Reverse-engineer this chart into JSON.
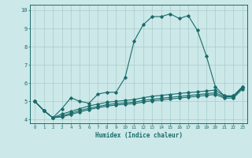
{
  "xlabel": "Humidex (Indice chaleur)",
  "background_color": "#cce8e8",
  "grid_color": "#aacccc",
  "line_color": "#1a6b6b",
  "xlim": [
    -0.5,
    23.5
  ],
  "ylim": [
    3.8,
    10.3
  ],
  "xticks": [
    0,
    1,
    2,
    3,
    4,
    5,
    6,
    7,
    8,
    9,
    10,
    11,
    12,
    13,
    14,
    15,
    16,
    17,
    18,
    19,
    20,
    21,
    22,
    23
  ],
  "yticks": [
    4,
    5,
    6,
    7,
    8,
    9,
    10
  ],
  "line1_x": [
    0,
    1,
    2,
    3,
    4,
    5,
    6,
    7,
    8,
    9,
    10,
    11,
    12,
    13,
    14,
    15,
    16,
    17,
    18,
    19,
    20,
    21,
    22,
    23
  ],
  "line1_y": [
    5.0,
    4.5,
    4.1,
    4.6,
    5.2,
    5.0,
    4.9,
    5.4,
    5.5,
    5.5,
    6.3,
    8.3,
    9.2,
    9.65,
    9.65,
    9.8,
    9.55,
    9.7,
    8.9,
    7.5,
    5.8,
    5.3,
    5.3,
    5.8
  ],
  "line2_x": [
    0,
    1,
    2,
    3,
    4,
    5,
    6,
    7,
    8,
    9,
    10,
    11,
    12,
    13,
    14,
    15,
    16,
    17,
    18,
    19,
    20,
    21,
    22,
    23
  ],
  "line2_y": [
    5.0,
    4.5,
    4.1,
    4.3,
    4.45,
    4.6,
    4.75,
    4.85,
    4.95,
    5.0,
    5.05,
    5.1,
    5.2,
    5.28,
    5.33,
    5.38,
    5.43,
    5.48,
    5.52,
    5.57,
    5.62,
    5.3,
    5.3,
    5.8
  ],
  "line3_x": [
    0,
    1,
    2,
    3,
    4,
    5,
    6,
    7,
    8,
    9,
    10,
    11,
    12,
    13,
    14,
    15,
    16,
    17,
    18,
    19,
    20,
    21,
    22,
    23
  ],
  "line3_y": [
    5.0,
    4.5,
    4.1,
    4.2,
    4.35,
    4.5,
    4.62,
    4.72,
    4.82,
    4.88,
    4.92,
    4.96,
    5.05,
    5.12,
    5.17,
    5.22,
    5.27,
    5.32,
    5.37,
    5.42,
    5.47,
    5.25,
    5.25,
    5.75
  ],
  "line4_x": [
    0,
    1,
    2,
    3,
    4,
    5,
    6,
    7,
    8,
    9,
    10,
    11,
    12,
    13,
    14,
    15,
    16,
    17,
    18,
    19,
    20,
    21,
    22,
    23
  ],
  "line4_y": [
    5.0,
    4.5,
    4.1,
    4.15,
    4.28,
    4.42,
    4.55,
    4.65,
    4.74,
    4.8,
    4.84,
    4.88,
    4.96,
    5.03,
    5.08,
    5.13,
    5.18,
    5.23,
    5.28,
    5.33,
    5.38,
    5.18,
    5.18,
    5.68
  ]
}
